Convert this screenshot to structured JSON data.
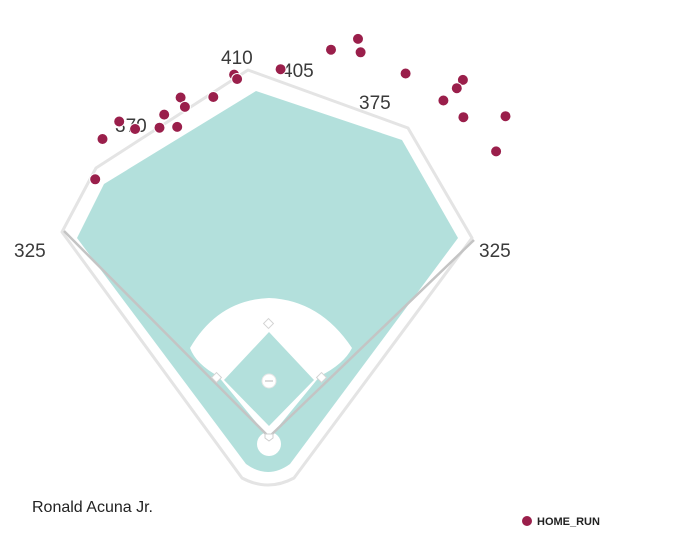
{
  "chart_data": {
    "type": "scatter",
    "title": "",
    "player_name": "Ronald Acuna Jr.",
    "fence_distances": {
      "left_line": "325",
      "left_center": "370",
      "center": "410",
      "right_center_a": "405",
      "right_center_b": "375",
      "right_line": "325"
    },
    "legend": [
      {
        "label": "HOME_RUN",
        "color": "#9a1f4b"
      }
    ],
    "colors": {
      "grass": "#b3e0dc",
      "infield_dirt": "#ffffff",
      "field_outline": "#e4e4e4",
      "foul_line": "#c4c4c4",
      "home_run": "#9a1f4b"
    },
    "axes_visible": false,
    "series": [
      {
        "name": "HOME_RUN",
        "points": [
          {
            "x": -5.5,
            "y": 465
          },
          {
            "x": -5.1,
            "y": 459
          },
          {
            "x": -9.3,
            "y": 440
          },
          {
            "x": -14.6,
            "y": 448
          },
          {
            "x": -14.3,
            "y": 435
          },
          {
            "x": -18.0,
            "y": 433
          },
          {
            "x": -19.5,
            "y": 419
          },
          {
            "x": -16.5,
            "y": 413
          },
          {
            "x": -23.5,
            "y": 429
          },
          {
            "x": -25.4,
            "y": 446
          },
          {
            "x": -29.2,
            "y": 436
          },
          {
            "x": -34.0,
            "y": 397
          },
          {
            "x": 1.8,
            "y": 470
          },
          {
            "x": 9.1,
            "y": 501
          },
          {
            "x": 12.6,
            "y": 521
          },
          {
            "x": 13.4,
            "y": 505
          },
          {
            "x": 20.6,
            "y": 496
          },
          {
            "x": 28.5,
            "y": 519
          },
          {
            "x": 28.3,
            "y": 506
          },
          {
            "x": 27.4,
            "y": 484
          },
          {
            "x": 31.3,
            "y": 478
          },
          {
            "x": 36.4,
            "y": 509
          },
          {
            "x": 38.5,
            "y": 466
          }
        ]
      }
    ]
  }
}
